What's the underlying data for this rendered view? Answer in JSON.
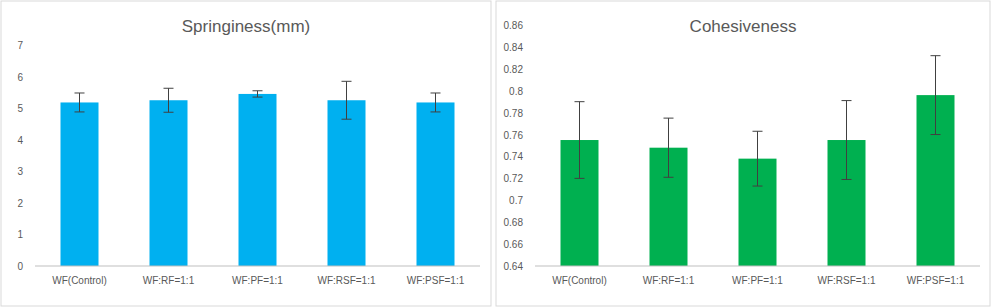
{
  "chart_data": [
    {
      "type": "bar",
      "title": "Springiness(mm)",
      "categories": [
        "WF(Control)",
        "WF:RF=1:1",
        "WF:PF=1:1",
        "WF:RSF=1:1",
        "WF:PSF=1:1"
      ],
      "values": [
        5.18,
        5.25,
        5.45,
        5.25,
        5.18
      ],
      "errors": [
        0.3,
        0.38,
        0.1,
        0.6,
        0.3
      ],
      "color": "#00b0f0",
      "ylim": [
        0,
        7
      ],
      "yticks": [
        0,
        1,
        2,
        3,
        4,
        5,
        6,
        7
      ],
      "grid": false
    },
    {
      "type": "bar",
      "title": "Cohesiveness",
      "categories": [
        "WF(Control)",
        "WF:RF=1:1",
        "WF:PF=1:1",
        "WF:RSF=1:1",
        "WF:PSF=1:1"
      ],
      "values": [
        0.755,
        0.748,
        0.738,
        0.755,
        0.796
      ],
      "errors": [
        0.035,
        0.027,
        0.025,
        0.036,
        0.036
      ],
      "color": "#00b050",
      "ylim": [
        0.64,
        0.86
      ],
      "yticks": [
        0.64,
        0.66,
        0.68,
        0.7,
        0.72,
        0.74,
        0.76,
        0.78,
        0.8,
        0.82,
        0.84,
        0.86
      ],
      "grid": false
    }
  ]
}
